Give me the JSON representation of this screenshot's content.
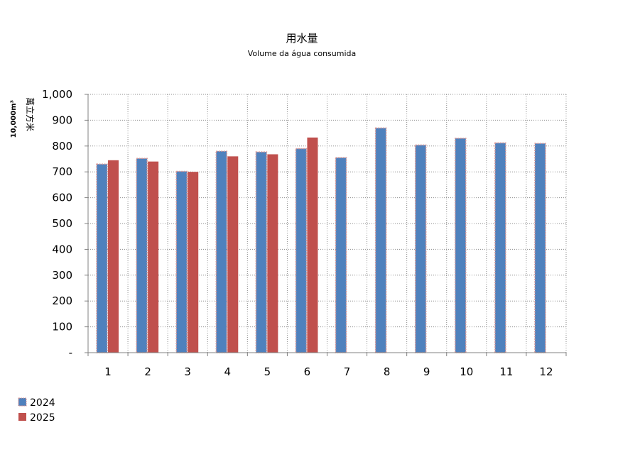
{
  "chart_data": {
    "type": "bar",
    "title": "用水量",
    "subtitle": "Volume da água consumida",
    "ylabel": "萬立方米",
    "ylabel_unit": "10,000m³",
    "categories": [
      "1",
      "2",
      "3",
      "4",
      "5",
      "6",
      "7",
      "8",
      "9",
      "10",
      "11",
      "12"
    ],
    "series": [
      {
        "name": "2024",
        "color": "#4f81bd",
        "values": [
          730,
          752,
          702,
          780,
          777,
          790,
          755,
          870,
          804,
          830,
          812,
          810
        ]
      },
      {
        "name": "2025",
        "color": "#c0504d",
        "values": [
          745,
          740,
          700,
          760,
          768,
          833,
          null,
          null,
          null,
          null,
          null,
          null
        ]
      }
    ],
    "ylim": [
      0,
      1000
    ],
    "yticks": [
      0,
      100,
      200,
      300,
      400,
      500,
      600,
      700,
      800,
      900,
      1000
    ],
    "ytick_labels": [
      "-",
      "100",
      "200",
      "300",
      "400",
      "500",
      "600",
      "700",
      "800",
      "900",
      "1,000"
    ],
    "grid": true,
    "legend_position": "bottom-left"
  }
}
